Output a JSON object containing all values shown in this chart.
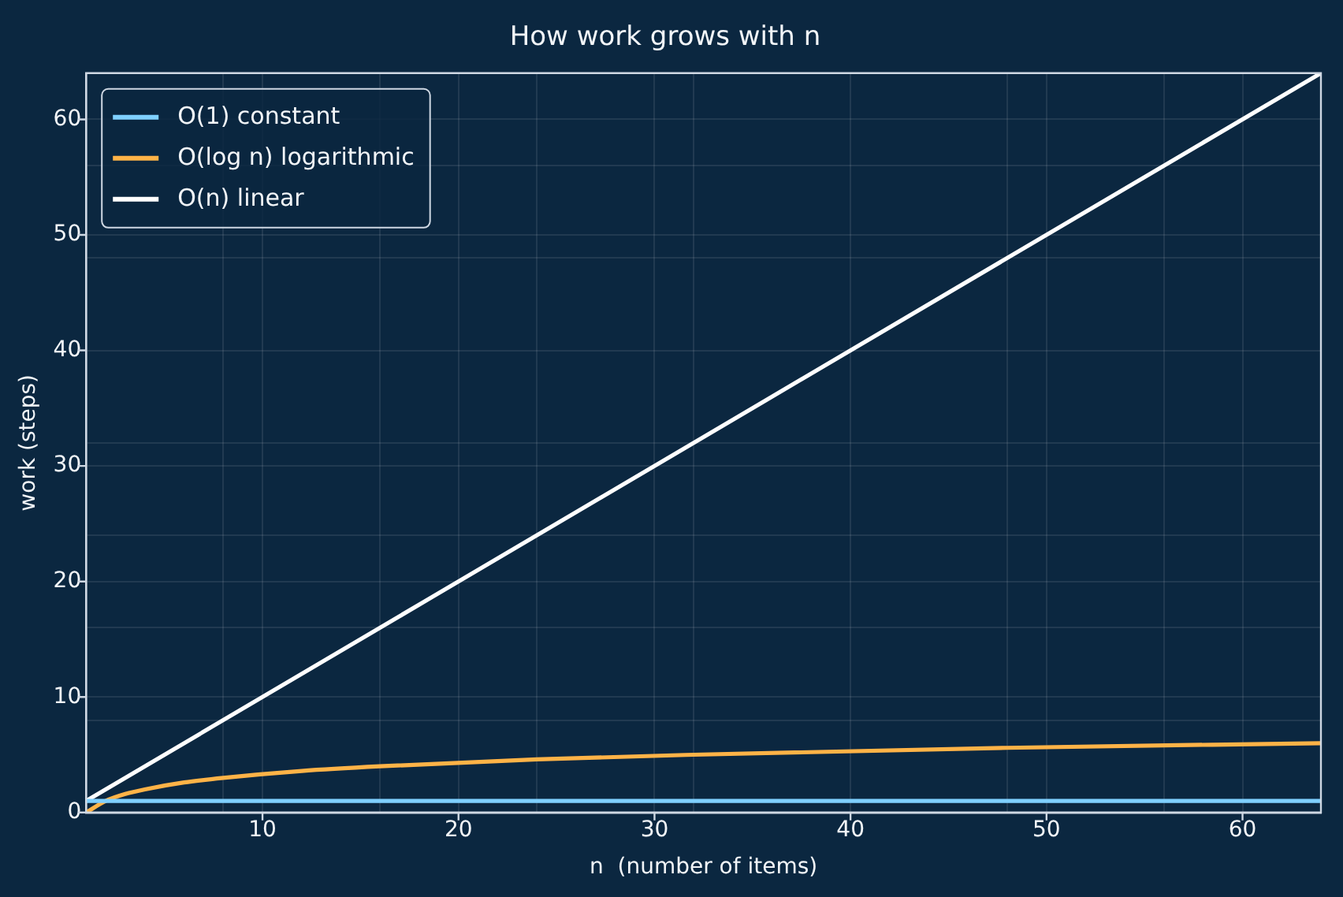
{
  "chart_data": {
    "type": "line",
    "title": "How work grows with n",
    "xlabel": "n  (number of items)",
    "ylabel": "work (steps)",
    "xlim": [
      1,
      64
    ],
    "ylim": [
      0,
      64
    ],
    "xticks": [
      {
        "value": 8,
        "label": null
      },
      10,
      {
        "value": 16,
        "label": null
      },
      20,
      {
        "value": 24,
        "label": null
      },
      30,
      {
        "value": 32,
        "label": null
      },
      40,
      {
        "value": 48,
        "label": null
      },
      50,
      {
        "value": 56,
        "label": null
      },
      60
    ],
    "yticks": [
      0,
      {
        "value": 8,
        "label": null
      },
      10,
      {
        "value": 16,
        "label": null
      },
      20,
      {
        "value": 24,
        "label": null
      },
      30,
      {
        "value": 32,
        "label": null
      },
      40,
      50,
      {
        "value": 48,
        "label": null
      },
      {
        "value": 56,
        "label": null
      },
      60
    ],
    "grid": true,
    "legend": "top left",
    "marker": "none",
    "line_style": "solid",
    "series": [
      {
        "name": "O(1) constant",
        "color": "#7fd0ff",
        "x": [
          1,
          64
        ],
        "values": [
          1,
          1
        ]
      },
      {
        "name": "O(log n) logarithmic",
        "color": "#ffb347",
        "x": [
          1,
          2,
          3,
          4,
          6,
          8,
          12,
          16,
          24,
          32,
          48,
          64
        ],
        "values": [
          0,
          1,
          1.6,
          2,
          2.6,
          3,
          3.6,
          4,
          4.6,
          5,
          5.6,
          6
        ]
      },
      {
        "name": "O(n) linear",
        "color": "#ffffff",
        "x": [
          1,
          64
        ],
        "values": [
          1,
          64
        ]
      }
    ]
  }
}
